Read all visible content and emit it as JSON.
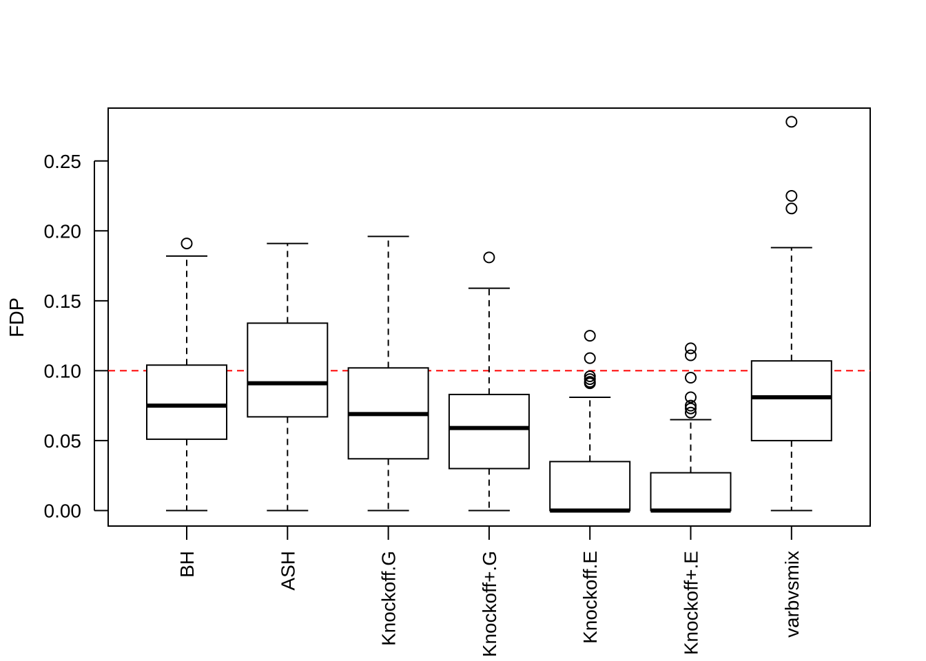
{
  "chart_data": {
    "type": "boxplot",
    "ylabel": "FDP",
    "ylim": [
      -0.0111,
      0.2878
    ],
    "yticks": [
      "0.00",
      "0.05",
      "0.10",
      "0.15",
      "0.20",
      "0.25"
    ],
    "reference_line": {
      "y": 0.1,
      "color": "#ff0000",
      "style": "dashed"
    },
    "grid": false,
    "categories": [
      "BH",
      "ASH",
      "Knockoff.G",
      "Knockoff+.G",
      "Knockoff.E",
      "Knockoff+.E",
      "varbvsmix"
    ],
    "boxes": [
      {
        "name": "BH",
        "whisker_low": 0.0,
        "q1": 0.051,
        "median": 0.075,
        "q3": 0.104,
        "whisker_high": 0.182,
        "outliers": [
          0.191
        ]
      },
      {
        "name": "ASH",
        "whisker_low": 0.0,
        "q1": 0.067,
        "median": 0.091,
        "q3": 0.134,
        "whisker_high": 0.191,
        "outliers": []
      },
      {
        "name": "Knockoff.G",
        "whisker_low": 0.0,
        "q1": 0.037,
        "median": 0.069,
        "q3": 0.102,
        "whisker_high": 0.196,
        "outliers": []
      },
      {
        "name": "Knockoff+.G",
        "whisker_low": 0.0,
        "q1": 0.03,
        "median": 0.059,
        "q3": 0.083,
        "whisker_high": 0.159,
        "outliers": [
          0.181
        ]
      },
      {
        "name": "Knockoff.E",
        "whisker_low": 0.0,
        "q1": 0.0,
        "median": 0.0,
        "q3": 0.035,
        "whisker_high": 0.081,
        "outliers": [
          0.125,
          0.109,
          0.096,
          0.094,
          0.092,
          0.091
        ]
      },
      {
        "name": "Knockoff+.E",
        "whisker_low": 0.0,
        "q1": 0.0,
        "median": 0.0,
        "q3": 0.027,
        "whisker_high": 0.065,
        "outliers": [
          0.116,
          0.111,
          0.095,
          0.081,
          0.075,
          0.073,
          0.07
        ]
      },
      {
        "name": "varbvsmix",
        "whisker_low": 0.0,
        "q1": 0.05,
        "median": 0.081,
        "q3": 0.107,
        "whisker_high": 0.188,
        "outliers": [
          0.278,
          0.225,
          0.216
        ]
      }
    ]
  }
}
